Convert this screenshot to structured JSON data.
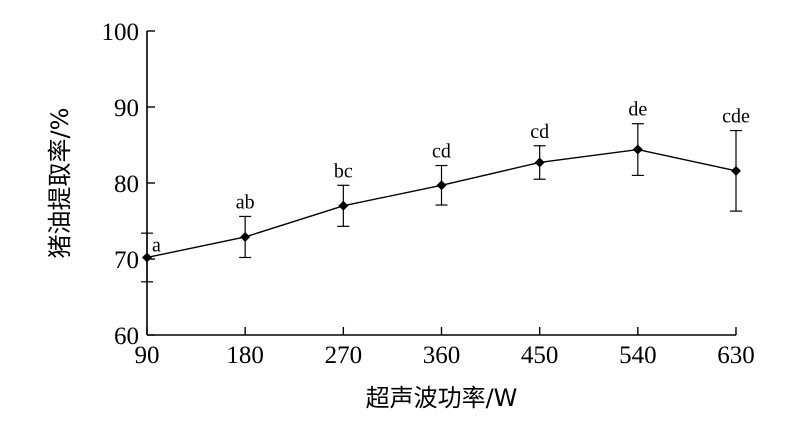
{
  "chart_data": {
    "type": "line",
    "title": "",
    "xlabel": "超声波功率/W",
    "ylabel": "猪油提取率/%",
    "x": [
      90,
      180,
      270,
      360,
      450,
      540,
      630
    ],
    "xticks": [
      "90",
      "180",
      "270",
      "360",
      "450",
      "540",
      "630"
    ],
    "yticks": [
      "60",
      "70",
      "80",
      "90",
      "100"
    ],
    "xlim": [
      90,
      630
    ],
    "ylim": [
      60,
      100
    ],
    "grid": false,
    "series": [
      {
        "values": [
          70.2,
          72.9,
          77.0,
          79.7,
          82.7,
          84.4,
          81.6
        ],
        "error": [
          3.2,
          2.7,
          2.7,
          2.6,
          2.2,
          3.4,
          5.3
        ],
        "labels": [
          "a",
          "ab",
          "bc",
          "cd",
          "cd",
          "de",
          "cde"
        ],
        "marker": "diamond",
        "color": "#000000"
      }
    ]
  }
}
